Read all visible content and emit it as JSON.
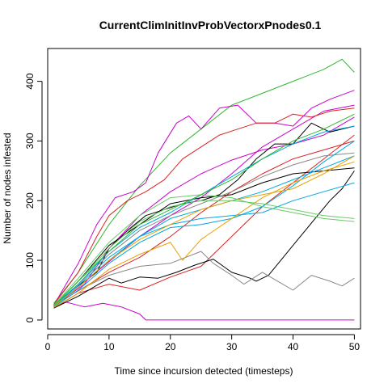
{
  "chart_data": {
    "type": "line",
    "title": "CurrentClimInitInvProbVectorxPnodes0.1",
    "xlabel": "Time since incursion detected (timesteps)",
    "ylabel": "Number of nodes infested",
    "xlim": [
      0,
      51
    ],
    "ylim": [
      -15,
      455
    ],
    "xticks": [
      0,
      10,
      20,
      30,
      40,
      50
    ],
    "yticks": [
      0,
      100,
      200,
      300,
      400
    ],
    "grid": false,
    "legend": "none",
    "series": [
      {
        "color": "#2EB82E",
        "points": [
          [
            1,
            28
          ],
          [
            5,
            80
          ],
          [
            10,
            160
          ],
          [
            15,
            225
          ],
          [
            20,
            280
          ],
          [
            25,
            320
          ],
          [
            30,
            360
          ],
          [
            35,
            380
          ],
          [
            40,
            400
          ],
          [
            45,
            420
          ],
          [
            48,
            437
          ],
          [
            50,
            415
          ]
        ]
      },
      {
        "color": "#CC00CC",
        "points": [
          [
            1,
            25
          ],
          [
            5,
            95
          ],
          [
            8,
            160
          ],
          [
            11,
            205
          ],
          [
            14,
            215
          ],
          [
            16,
            230
          ],
          [
            18,
            280
          ],
          [
            21,
            330
          ],
          [
            23,
            342
          ],
          [
            25,
            320
          ],
          [
            28,
            355
          ],
          [
            31,
            360
          ],
          [
            34,
            330
          ],
          [
            37,
            330
          ],
          [
            40,
            325
          ],
          [
            43,
            355
          ],
          [
            46,
            370
          ],
          [
            50,
            385
          ]
        ]
      },
      {
        "color": "#CC00CC",
        "points": [
          [
            1,
            22
          ],
          [
            3,
            30
          ],
          [
            6,
            22
          ],
          [
            9,
            28
          ],
          [
            12,
            22
          ],
          [
            15,
            10
          ],
          [
            16,
            0
          ],
          [
            50,
            0
          ]
        ]
      },
      {
        "color": "#CC00CC",
        "points": [
          [
            1,
            24
          ],
          [
            6,
            60
          ],
          [
            10,
            120
          ],
          [
            15,
            175
          ],
          [
            20,
            215
          ],
          [
            25,
            245
          ],
          [
            30,
            268
          ],
          [
            35,
            285
          ],
          [
            40,
            295
          ],
          [
            45,
            310
          ],
          [
            50,
            340
          ]
        ]
      },
      {
        "color": "#CC00CC",
        "points": [
          [
            1,
            22
          ],
          [
            5,
            55
          ],
          [
            10,
            98
          ],
          [
            15,
            140
          ],
          [
            20,
            175
          ],
          [
            25,
            205
          ],
          [
            30,
            245
          ],
          [
            35,
            290
          ],
          [
            40,
            320
          ],
          [
            45,
            350
          ],
          [
            50,
            360
          ]
        ]
      },
      {
        "color": "#DD2222",
        "points": [
          [
            1,
            26
          ],
          [
            5,
            80
          ],
          [
            8,
            140
          ],
          [
            10,
            175
          ],
          [
            13,
            200
          ],
          [
            16,
            215
          ],
          [
            19,
            235
          ],
          [
            22,
            270
          ],
          [
            25,
            290
          ],
          [
            28,
            310
          ],
          [
            31,
            320
          ],
          [
            34,
            330
          ],
          [
            37,
            330
          ],
          [
            40,
            345
          ],
          [
            43,
            340
          ],
          [
            46,
            350
          ],
          [
            50,
            355
          ]
        ]
      },
      {
        "color": "#DD2222",
        "points": [
          [
            1,
            20
          ],
          [
            5,
            45
          ],
          [
            10,
            60
          ],
          [
            15,
            50
          ],
          [
            20,
            72
          ],
          [
            25,
            90
          ],
          [
            30,
            140
          ],
          [
            35,
            190
          ],
          [
            40,
            230
          ],
          [
            45,
            270
          ],
          [
            50,
            310
          ]
        ]
      },
      {
        "color": "#DD2222",
        "points": [
          [
            1,
            25
          ],
          [
            6,
            55
          ],
          [
            10,
            80
          ],
          [
            15,
            105
          ],
          [
            20,
            140
          ],
          [
            25,
            180
          ],
          [
            30,
            215
          ],
          [
            35,
            245
          ],
          [
            40,
            270
          ],
          [
            45,
            285
          ],
          [
            50,
            300
          ]
        ]
      },
      {
        "color": "#000000",
        "points": [
          [
            1,
            22
          ],
          [
            4,
            50
          ],
          [
            8,
            80
          ],
          [
            10,
            120
          ],
          [
            13,
            150
          ],
          [
            16,
            175
          ],
          [
            19,
            185
          ],
          [
            22,
            195
          ],
          [
            25,
            200
          ],
          [
            28,
            210
          ],
          [
            31,
            235
          ],
          [
            34,
            270
          ],
          [
            37,
            295
          ],
          [
            40,
            295
          ],
          [
            43,
            330
          ],
          [
            46,
            315
          ],
          [
            50,
            325
          ]
        ]
      },
      {
        "color": "#000000",
        "points": [
          [
            1,
            20
          ],
          [
            5,
            40
          ],
          [
            10,
            70
          ],
          [
            12,
            62
          ],
          [
            15,
            72
          ],
          [
            18,
            70
          ],
          [
            21,
            80
          ],
          [
            24,
            92
          ],
          [
            27,
            102
          ],
          [
            30,
            80
          ],
          [
            33,
            70
          ],
          [
            34,
            65
          ],
          [
            36,
            75
          ],
          [
            38,
            100
          ],
          [
            40,
            125
          ],
          [
            42,
            150
          ],
          [
            44,
            175
          ],
          [
            46,
            200
          ],
          [
            48,
            220
          ],
          [
            50,
            250
          ]
        ]
      },
      {
        "color": "#000000",
        "points": [
          [
            1,
            24
          ],
          [
            5,
            65
          ],
          [
            10,
            125
          ],
          [
            15,
            160
          ],
          [
            20,
            195
          ],
          [
            25,
            205
          ],
          [
            30,
            210
          ],
          [
            35,
            230
          ],
          [
            40,
            245
          ],
          [
            45,
            250
          ],
          [
            50,
            255
          ]
        ]
      },
      {
        "color": "#888888",
        "points": [
          [
            1,
            22
          ],
          [
            5,
            50
          ],
          [
            10,
            75
          ],
          [
            15,
            90
          ],
          [
            20,
            95
          ],
          [
            25,
            115
          ],
          [
            27,
            95
          ],
          [
            30,
            75
          ],
          [
            32,
            60
          ],
          [
            35,
            80
          ],
          [
            38,
            62
          ],
          [
            40,
            50
          ],
          [
            43,
            75
          ],
          [
            46,
            65
          ],
          [
            48,
            57
          ],
          [
            50,
            70
          ]
        ]
      },
      {
        "color": "#888888",
        "points": [
          [
            1,
            24
          ],
          [
            5,
            60
          ],
          [
            10,
            110
          ],
          [
            15,
            150
          ],
          [
            20,
            175
          ],
          [
            25,
            195
          ],
          [
            30,
            215
          ],
          [
            35,
            240
          ],
          [
            40,
            260
          ],
          [
            45,
            275
          ],
          [
            50,
            280
          ]
        ]
      },
      {
        "color": "#00A8E0",
        "points": [
          [
            1,
            24
          ],
          [
            5,
            60
          ],
          [
            10,
            115
          ],
          [
            15,
            155
          ],
          [
            20,
            180
          ],
          [
            25,
            210
          ],
          [
            30,
            240
          ],
          [
            35,
            270
          ],
          [
            40,
            295
          ],
          [
            45,
            315
          ],
          [
            50,
            325
          ]
        ]
      },
      {
        "color": "#00A8E0",
        "points": [
          [
            1,
            22
          ],
          [
            5,
            55
          ],
          [
            10,
            100
          ],
          [
            15,
            140
          ],
          [
            20,
            160
          ],
          [
            25,
            170
          ],
          [
            30,
            175
          ],
          [
            35,
            180
          ],
          [
            40,
            200
          ],
          [
            45,
            215
          ],
          [
            50,
            230
          ]
        ]
      },
      {
        "color": "#00A8E0",
        "points": [
          [
            1,
            23
          ],
          [
            5,
            58
          ],
          [
            10,
            105
          ],
          [
            15,
            140
          ],
          [
            20,
            170
          ],
          [
            25,
            185
          ],
          [
            30,
            200
          ],
          [
            35,
            215
          ],
          [
            40,
            235
          ],
          [
            45,
            255
          ],
          [
            50,
            275
          ]
        ]
      },
      {
        "color": "#00A8E0",
        "points": [
          [
            1,
            22
          ],
          [
            5,
            50
          ],
          [
            10,
            95
          ],
          [
            15,
            130
          ],
          [
            20,
            155
          ],
          [
            25,
            160
          ],
          [
            30,
            170
          ],
          [
            35,
            190
          ],
          [
            40,
            225
          ],
          [
            45,
            265
          ],
          [
            50,
            300
          ]
        ]
      },
      {
        "color": "#E8A000",
        "points": [
          [
            1,
            21
          ],
          [
            5,
            45
          ],
          [
            10,
            85
          ],
          [
            15,
            110
          ],
          [
            20,
            130
          ],
          [
            22,
            100
          ],
          [
            25,
            135
          ],
          [
            30,
            170
          ],
          [
            35,
            205
          ],
          [
            40,
            230
          ],
          [
            45,
            250
          ],
          [
            50,
            265
          ]
        ]
      },
      {
        "color": "#E8A000",
        "points": [
          [
            1,
            23
          ],
          [
            5,
            55
          ],
          [
            10,
            100
          ],
          [
            15,
            135
          ],
          [
            20,
            160
          ],
          [
            25,
            185
          ],
          [
            30,
            200
          ],
          [
            35,
            210
          ],
          [
            40,
            220
          ],
          [
            45,
            245
          ],
          [
            50,
            275
          ]
        ]
      },
      {
        "color": "#66CC66",
        "points": [
          [
            1,
            25
          ],
          [
            5,
            70
          ],
          [
            10,
            130
          ],
          [
            15,
            175
          ],
          [
            20,
            205
          ],
          [
            25,
            210
          ],
          [
            30,
            205
          ],
          [
            35,
            190
          ],
          [
            40,
            180
          ],
          [
            45,
            170
          ],
          [
            50,
            165
          ]
        ]
      },
      {
        "color": "#66CC66",
        "points": [
          [
            1,
            24
          ],
          [
            5,
            65
          ],
          [
            10,
            120
          ],
          [
            15,
            165
          ],
          [
            20,
            190
          ],
          [
            25,
            200
          ],
          [
            30,
            200
          ],
          [
            35,
            195
          ],
          [
            40,
            185
          ],
          [
            45,
            175
          ],
          [
            50,
            170
          ]
        ]
      },
      {
        "color": "#2EB82E",
        "points": [
          [
            1,
            24
          ],
          [
            5,
            65
          ],
          [
            10,
            115
          ],
          [
            15,
            160
          ],
          [
            20,
            185
          ],
          [
            25,
            210
          ],
          [
            30,
            235
          ],
          [
            35,
            270
          ],
          [
            40,
            300
          ],
          [
            45,
            320
          ],
          [
            50,
            345
          ]
        ]
      }
    ]
  }
}
